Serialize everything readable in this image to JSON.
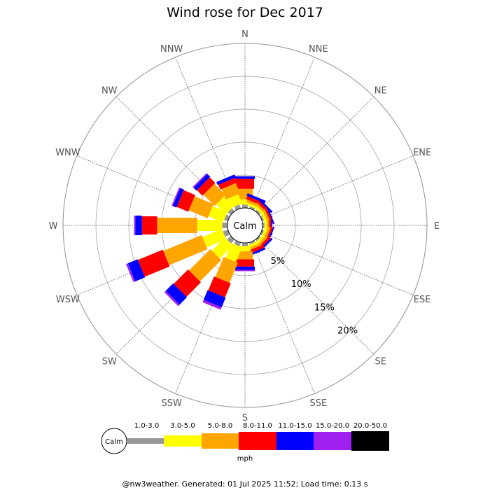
{
  "chart_data": {
    "type": "wind-rose",
    "title": "Wind rose for Dec 2017",
    "directions": [
      "N",
      "NNE",
      "NE",
      "ENE",
      "E",
      "ESE",
      "SE",
      "SSE",
      "S",
      "SSW",
      "SW",
      "WSW",
      "W",
      "WNW",
      "NW",
      "NNW"
    ],
    "radial_ticks": [
      "5%",
      "10%",
      "15%",
      "20%"
    ],
    "radial_max_percent": 25,
    "calm_label": "Calm",
    "units": "mph",
    "bins": [
      {
        "label": "1.0-3.0",
        "color": "#999999"
      },
      {
        "label": "3.0-5.0",
        "color": "#ffff00"
      },
      {
        "label": "5.0-8.0",
        "color": "#ffa500"
      },
      {
        "label": "8.0-11.0",
        "color": "#ff0000"
      },
      {
        "label": "11.0-15.0",
        "color": "#0000ff"
      },
      {
        "label": "15.0-20.0",
        "color": "#a020f0"
      },
      {
        "label": "20.0-50.0",
        "color": "#000000"
      }
    ],
    "series": [
      {
        "direction": "N",
        "values": [
          0.5,
          0.8,
          1.6,
          1.5,
          0.4,
          0.0,
          0
        ]
      },
      {
        "direction": "NNE",
        "values": [
          0.3,
          0.4,
          0.4,
          0.5,
          0.4,
          0.0,
          0
        ]
      },
      {
        "direction": "NE",
        "values": [
          0.3,
          0.4,
          0.4,
          0.4,
          0.3,
          0.0,
          0
        ]
      },
      {
        "direction": "ENE",
        "values": [
          0.3,
          0.4,
          0.4,
          0.3,
          0.2,
          0.0,
          0
        ]
      },
      {
        "direction": "E",
        "values": [
          0.3,
          0.4,
          0.3,
          0.3,
          0.2,
          0.0,
          0
        ]
      },
      {
        "direction": "ESE",
        "values": [
          0.3,
          0.4,
          0.4,
          0.3,
          0.2,
          0.0,
          0
        ]
      },
      {
        "direction": "SE",
        "values": [
          0.3,
          0.4,
          0.4,
          0.4,
          0.3,
          0.0,
          0
        ]
      },
      {
        "direction": "SSE",
        "values": [
          0.3,
          0.4,
          0.4,
          0.5,
          0.3,
          0.0,
          0
        ]
      },
      {
        "direction": "S",
        "values": [
          0.5,
          0.8,
          1.2,
          1.1,
          0.5,
          0.2,
          0
        ]
      },
      {
        "direction": "SSW",
        "values": [
          0.6,
          2.4,
          3.3,
          2.3,
          1.6,
          0.4,
          0
        ]
      },
      {
        "direction": "SW",
        "values": [
          0.8,
          2.8,
          4.6,
          3.1,
          1.6,
          0.3,
          0
        ]
      },
      {
        "direction": "WSW",
        "values": [
          0.8,
          3.2,
          6.3,
          4.1,
          1.6,
          0.3,
          0
        ]
      },
      {
        "direction": "W",
        "values": [
          0.8,
          3.8,
          6.1,
          2.3,
          1.0,
          0.2,
          0
        ]
      },
      {
        "direction": "WNW",
        "values": [
          0.6,
          2.4,
          3.1,
          1.9,
          0.6,
          0.2,
          0
        ]
      },
      {
        "direction": "NW",
        "values": [
          0.6,
          2.1,
          2.4,
          1.2,
          0.6,
          0.2,
          0
        ]
      },
      {
        "direction": "NNW",
        "values": [
          0.6,
          1.5,
          1.7,
          0.8,
          0.5,
          0.0,
          0
        ]
      }
    ]
  },
  "footer": "@nw3weather.  Generated: 01 Jul 2025 11:52; Load time: 0.13 s"
}
